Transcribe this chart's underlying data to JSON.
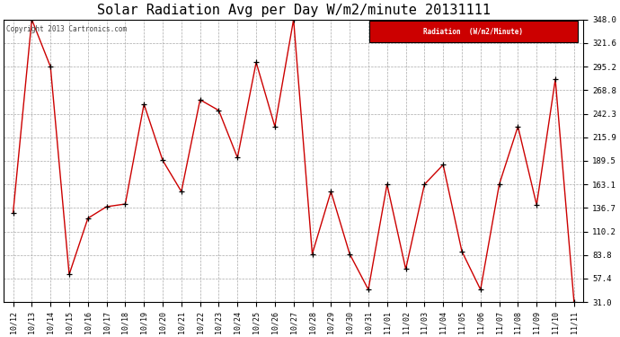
{
  "title": "Solar Radiation Avg per Day W/m2/minute 20131111",
  "copyright_text": "Copyright 2013 Cartronics.com",
  "legend_label": "Radiation  (W/m2/Minute)",
  "legend_bg": "#cc0000",
  "legend_text_color": "#ffffff",
  "x_labels": [
    "10/12",
    "10/13",
    "10/14",
    "10/15",
    "10/16",
    "10/17",
    "10/18",
    "10/19",
    "10/20",
    "10/21",
    "10/22",
    "10/23",
    "10/24",
    "10/25",
    "10/26",
    "10/27",
    "10/28",
    "10/29",
    "10/30",
    "10/31",
    "11/01",
    "11/02",
    "11/03",
    "11/04",
    "11/05",
    "11/06",
    "11/07",
    "11/08",
    "11/09",
    "11/10",
    "11/11"
  ],
  "y_values": [
    131,
    348,
    295,
    62,
    125,
    138,
    141,
    253,
    190,
    155,
    258,
    246,
    193,
    300,
    228,
    348,
    85,
    155,
    85,
    45,
    163,
    68,
    163,
    185,
    88,
    45,
    163,
    228,
    140,
    281,
    31
  ],
  "y_ticks": [
    31.0,
    57.4,
    83.8,
    110.2,
    136.7,
    163.1,
    189.5,
    215.9,
    242.3,
    268.8,
    295.2,
    321.6,
    348.0
  ],
  "line_color": "#cc0000",
  "marker_color": "#000000",
  "bg_color": "#ffffff",
  "grid_color": "#aaaaaa",
  "title_fontsize": 11,
  "y_min": 31.0,
  "y_max": 348.0
}
